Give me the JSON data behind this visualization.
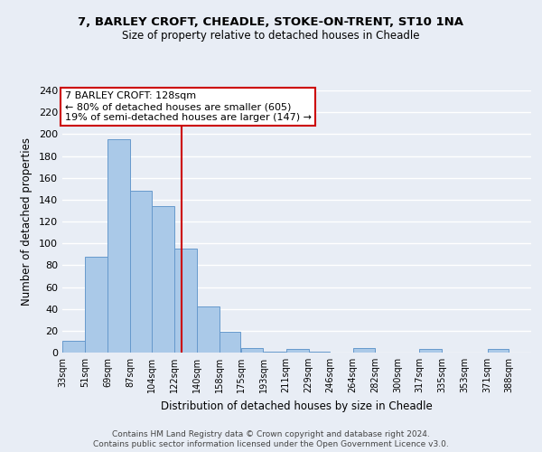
{
  "title": "7, BARLEY CROFT, CHEADLE, STOKE-ON-TRENT, ST10 1NA",
  "subtitle": "Size of property relative to detached houses in Cheadle",
  "xlabel": "Distribution of detached houses by size in Cheadle",
  "ylabel": "Number of detached properties",
  "bar_left_edges": [
    33,
    51,
    69,
    87,
    104,
    122,
    140,
    158,
    175,
    193,
    211,
    229,
    246,
    264,
    282,
    300,
    317,
    335,
    353,
    371
  ],
  "bar_heights": [
    11,
    88,
    195,
    148,
    134,
    95,
    42,
    19,
    4,
    1,
    3,
    1,
    0,
    4,
    0,
    0,
    3,
    0,
    0,
    3
  ],
  "bar_widths": [
    18,
    18,
    18,
    17,
    18,
    18,
    18,
    17,
    18,
    18,
    18,
    17,
    18,
    18,
    18,
    17,
    18,
    18,
    18,
    17
  ],
  "tick_labels": [
    "33sqm",
    "51sqm",
    "69sqm",
    "87sqm",
    "104sqm",
    "122sqm",
    "140sqm",
    "158sqm",
    "175sqm",
    "193sqm",
    "211sqm",
    "229sqm",
    "246sqm",
    "264sqm",
    "282sqm",
    "300sqm",
    "317sqm",
    "335sqm",
    "353sqm",
    "371sqm",
    "388sqm"
  ],
  "tick_positions": [
    33,
    51,
    69,
    87,
    104,
    122,
    140,
    158,
    175,
    193,
    211,
    229,
    246,
    264,
    282,
    300,
    317,
    335,
    353,
    371,
    388
  ],
  "bar_color": "#aac9e8",
  "bar_edge_color": "#6699cc",
  "property_line_x": 128,
  "property_line_color": "#cc0000",
  "annotation_title": "7 BARLEY CROFT: 128sqm",
  "annotation_line1": "← 80% of detached houses are smaller (605)",
  "annotation_line2": "19% of semi-detached houses are larger (147) →",
  "annotation_box_color": "#ffffff",
  "annotation_box_edge_color": "#cc0000",
  "ylim": [
    0,
    240
  ],
  "yticks": [
    0,
    20,
    40,
    60,
    80,
    100,
    120,
    140,
    160,
    180,
    200,
    220,
    240
  ],
  "footer_line1": "Contains HM Land Registry data © Crown copyright and database right 2024.",
  "footer_line2": "Contains public sector information licensed under the Open Government Licence v3.0.",
  "background_color": "#e8edf5",
  "grid_color": "#ffffff"
}
